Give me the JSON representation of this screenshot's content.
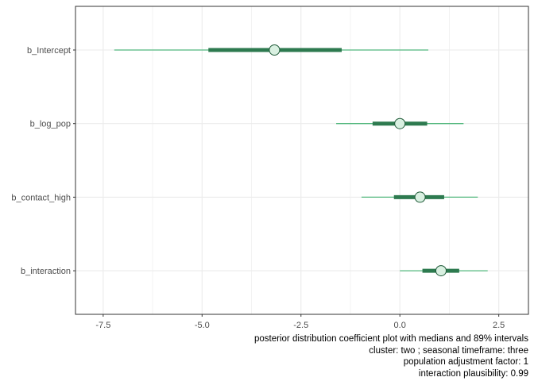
{
  "chart_data": {
    "type": "interval",
    "title": "",
    "xlabel": "",
    "ylabel": "",
    "xlim": [
      -8.2,
      3.25
    ],
    "x_ticks": [
      -7.5,
      -5.0,
      -2.5,
      0.0,
      2.5
    ],
    "x_tick_labels": [
      "-7.5",
      "-5.0",
      "-2.5",
      "0.0",
      "2.5"
    ],
    "grid": true,
    "legend": "none",
    "categories": [
      "b_Intercept",
      "b_log_pop",
      "b_contact_high",
      "b_interaction"
    ],
    "intervals": [
      {
        "param": "b_Intercept",
        "median": -3.17,
        "inner": [
          -4.84,
          -1.47
        ],
        "outer": [
          -7.22,
          0.72
        ]
      },
      {
        "param": "b_log_pop",
        "median": 0.0,
        "inner": [
          -0.69,
          0.69
        ],
        "outer": [
          -1.61,
          1.61
        ]
      },
      {
        "param": "b_contact_high",
        "median": 0.51,
        "inner": [
          -0.15,
          1.12
        ],
        "outer": [
          -0.97,
          1.97
        ]
      },
      {
        "param": "b_interaction",
        "median": 1.04,
        "inner": [
          0.57,
          1.5
        ],
        "outer": [
          0.0,
          2.22
        ]
      }
    ],
    "colors": {
      "outer_line": "#52b77d",
      "inner_line": "#2d7a4f",
      "point_fill": "#d9f0e1",
      "point_stroke": "#1f5a38",
      "grid": "#ebebeb",
      "panel_border": "#333333"
    }
  },
  "caption": [
    "posterior distribution coefficient plot with medians and 89% intervals",
    "cluster: two ; seasonal timeframe: three",
    "population adjustment factor: 1",
    "interaction plausibility: 0.99"
  ]
}
